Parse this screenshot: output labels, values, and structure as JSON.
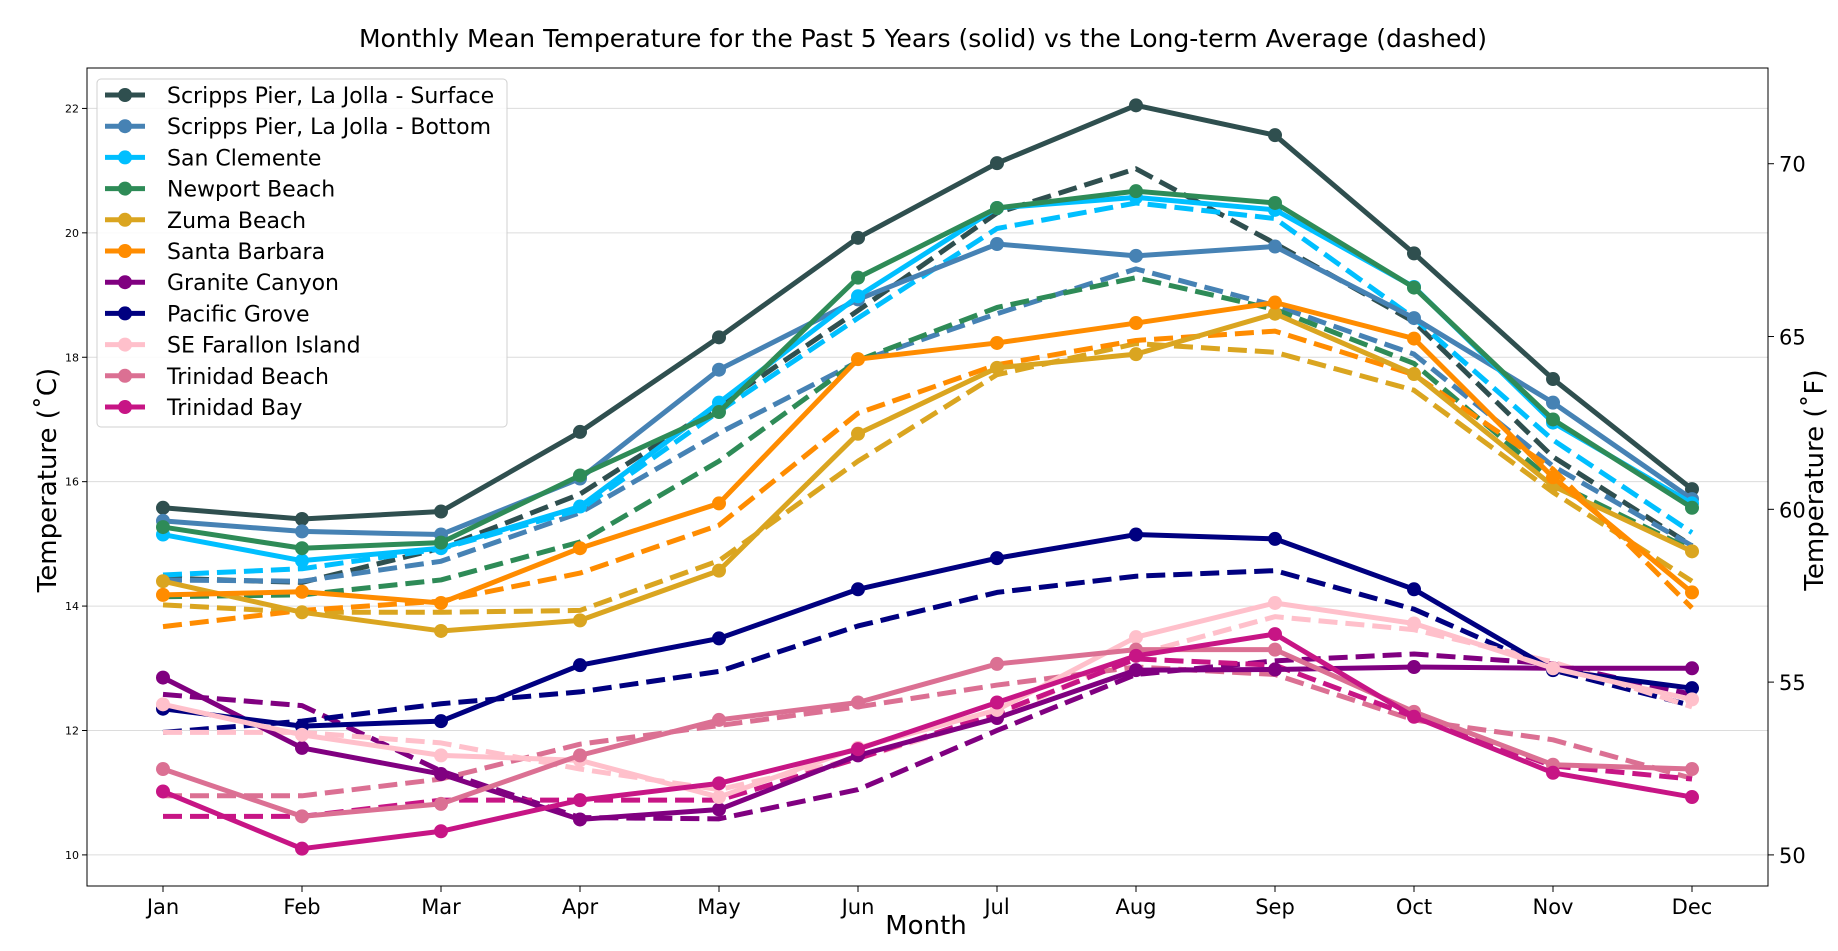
{
  "chart_data": {
    "type": "line",
    "title": "Monthly Mean Temperature for the Past 5 Years (solid) vs the Long-term Average (dashed)",
    "xlabel": "Month",
    "ylabel": "Temperature (˚C)",
    "ylabel_right": "Temperature (˚F)",
    "categories": [
      "Jan",
      "Feb",
      "Mar",
      "Apr",
      "May",
      "Jun",
      "Jul",
      "Aug",
      "Sep",
      "Oct",
      "Nov",
      "Dec"
    ],
    "ylim": [
      9.5,
      22.65
    ],
    "yticks": [
      10,
      12,
      14,
      16,
      18,
      20,
      22
    ],
    "yticks_right": [
      50,
      55,
      60,
      65,
      70
    ],
    "grid": "horizontal",
    "legend_position": "upper-left",
    "series": [
      {
        "name": "Scripps Pier, La Jolla - Surface",
        "color": "#2f4f4f",
        "values": [
          15.58,
          15.4,
          15.52,
          16.8,
          18.32,
          19.92,
          21.12,
          22.05,
          21.57,
          19.67,
          17.65,
          15.88
        ],
        "average": [
          14.45,
          14.38,
          14.93,
          15.8,
          17.23,
          18.75,
          20.32,
          21.03,
          19.83,
          18.57,
          16.4,
          14.97
        ]
      },
      {
        "name": "Scripps Pier, La Jolla - Bottom",
        "color": "#4682b4",
        "values": [
          15.37,
          15.2,
          15.15,
          16.05,
          17.8,
          18.93,
          19.82,
          19.63,
          19.78,
          18.63,
          17.27,
          15.72
        ],
        "average": [
          14.42,
          14.4,
          14.72,
          15.5,
          16.78,
          17.93,
          18.7,
          19.42,
          18.83,
          18.05,
          16.25,
          14.97
        ]
      },
      {
        "name": "San Clemente",
        "color": "#00bfff",
        "values": [
          15.15,
          14.73,
          14.93,
          15.6,
          17.27,
          18.98,
          20.4,
          20.57,
          20.37,
          19.13,
          16.95,
          15.65
        ],
        "average": [
          14.5,
          14.6,
          14.92,
          15.55,
          17.13,
          18.63,
          20.07,
          20.48,
          20.23,
          18.63,
          16.67,
          15.18
        ]
      },
      {
        "name": "Newport Beach",
        "color": "#2e8b57",
        "values": [
          15.27,
          14.93,
          15.02,
          16.1,
          17.12,
          19.28,
          20.4,
          20.67,
          20.48,
          19.12,
          17.0,
          15.58
        ],
        "average": [
          14.15,
          14.18,
          14.42,
          15.03,
          16.33,
          17.95,
          18.8,
          19.28,
          18.77,
          17.9,
          16.0,
          14.9
        ]
      },
      {
        "name": "Zuma Beach",
        "color": "#daa520",
        "values": [
          14.4,
          13.9,
          13.6,
          13.77,
          14.57,
          16.77,
          17.83,
          18.05,
          18.7,
          17.73,
          15.93,
          14.88
        ],
        "average": [
          14.02,
          13.9,
          13.9,
          13.93,
          14.73,
          16.33,
          17.72,
          18.22,
          18.08,
          17.47,
          15.83,
          14.4
        ]
      },
      {
        "name": "Santa Barbara",
        "color": "#ff8c00",
        "values": [
          14.18,
          14.23,
          14.05,
          14.93,
          15.65,
          17.97,
          18.23,
          18.55,
          18.88,
          18.3,
          16.07,
          14.22
        ],
        "average": [
          13.67,
          13.93,
          14.08,
          14.53,
          15.3,
          17.1,
          17.88,
          18.27,
          18.42,
          17.72,
          16.2,
          13.97
        ]
      },
      {
        "name": "Granite Canyon",
        "color": "#800080",
        "values": [
          12.85,
          11.72,
          11.3,
          10.57,
          10.73,
          11.6,
          12.2,
          12.97,
          12.98,
          13.02,
          13.0,
          13.0
        ],
        "average": [
          12.58,
          12.4,
          11.35,
          10.6,
          10.58,
          11.05,
          12.0,
          12.9,
          13.12,
          13.23,
          13.07,
          12.58
        ]
      },
      {
        "name": "Pacific Grove",
        "color": "#000080",
        "values": [
          12.35,
          12.07,
          12.15,
          13.05,
          13.48,
          14.27,
          14.77,
          15.15,
          15.08,
          14.27,
          12.97,
          12.68
        ],
        "average": [
          11.97,
          12.15,
          12.43,
          12.62,
          12.95,
          13.68,
          14.22,
          14.48,
          14.57,
          13.95,
          12.97,
          12.4
        ]
      },
      {
        "name": "SE Farallon Island",
        "color": "#ffc0cb",
        "values": [
          12.42,
          11.93,
          11.6,
          11.52,
          10.93,
          11.72,
          12.33,
          13.5,
          14.05,
          13.72,
          13.0,
          12.5
        ],
        "average": [
          11.97,
          11.97,
          11.8,
          11.38,
          11.05,
          11.55,
          12.22,
          13.22,
          13.83,
          13.62,
          13.1,
          12.38
        ]
      },
      {
        "name": "Trinidad Beach",
        "color": "#db7093",
        "values": [
          11.38,
          10.62,
          10.82,
          11.6,
          12.17,
          12.45,
          13.07,
          13.3,
          13.3,
          12.3,
          11.45,
          11.38
        ],
        "average": [
          10.95,
          10.95,
          11.22,
          11.78,
          12.08,
          12.38,
          12.73,
          13.02,
          12.9,
          12.17,
          11.85,
          11.23
        ]
      },
      {
        "name": "Trinidad Bay",
        "color": "#c71585",
        "values": [
          11.02,
          10.1,
          10.38,
          10.88,
          11.15,
          11.7,
          12.45,
          13.2,
          13.55,
          12.22,
          11.32,
          10.93
        ],
        "average": [
          10.62,
          10.62,
          10.88,
          10.88,
          10.88,
          11.55,
          12.28,
          13.15,
          13.05,
          12.22,
          11.43,
          11.22
        ]
      }
    ]
  }
}
